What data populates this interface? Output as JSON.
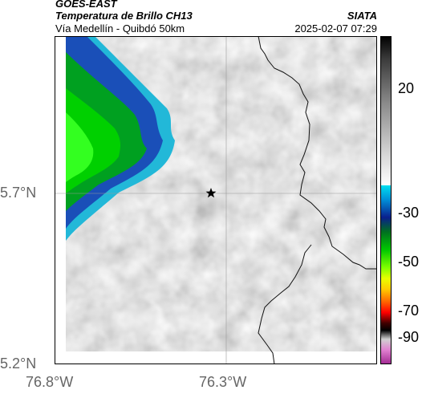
{
  "header": {
    "satellite": "GOES-EAST",
    "product": "Temperatura de Brillo CH13",
    "route": "Vía Medellín - Quibdó 50km",
    "org": "SIATA",
    "datetime": "2025-02-07 07:29"
  },
  "map": {
    "lat_ticks": [
      "5.7°N",
      "5.2°N"
    ],
    "lon_ticks": [
      "76.8°W",
      "76.3°W"
    ],
    "lat_range": [
      5.2,
      6.2
    ],
    "lon_range": [
      -76.8,
      -75.8
    ],
    "gridlines": true,
    "marker": "star"
  },
  "colorbar": {
    "ticks": [
      "20",
      "-30",
      "-50",
      "-70",
      "-90"
    ],
    "range": [
      -95,
      45
    ],
    "colors": {
      "warm_top": "#000000",
      "warm_bottom": "#f2f2f2",
      "cyan": "#00d8f0",
      "blue": "#0a1f8c",
      "green": "#00c800",
      "yellow": "#e8ff00",
      "red": "#ff0000",
      "black": "#000000",
      "magenta": "#c040b0"
    }
  }
}
